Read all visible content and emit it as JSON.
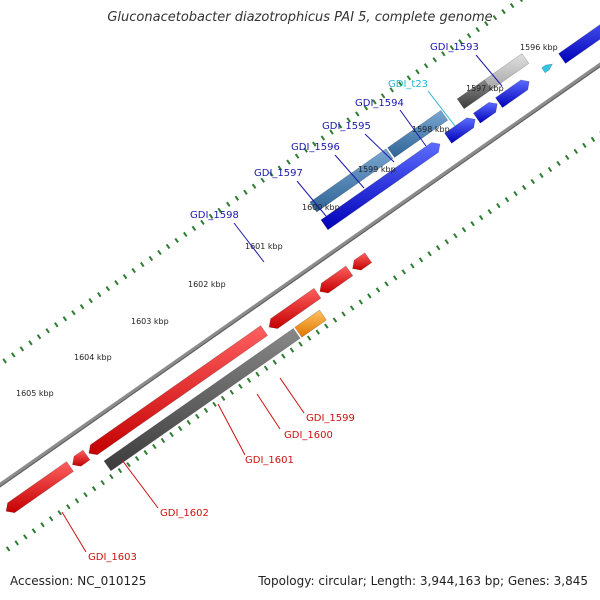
{
  "title": "Gluconacetobacter diazotrophicus PAI 5, complete genome",
  "accession": "Accession: NC_010125",
  "topology": "Topology: circular; Length: 3,944,163 bp; Genes: 3,845",
  "colors": {
    "backbone": "#8c8c8c",
    "tick": "#2e7d32",
    "forward_cds": "#0a14d8",
    "reverse_cds": "#ee0a0a",
    "trna": "#33c4e0",
    "steelblue_feature": "#4a82b4",
    "dark_grey_feature": "#5c5c5c",
    "light_grey_feature": "#c2c2c2",
    "orange_feature": "#ff9a12",
    "forward_label": "#1a1aaa",
    "reverse_label": "#cc1111",
    "trna_label": "#27b4d4"
  },
  "ticks": [
    "1596 kbp",
    "1597 kbp",
    "1598 kbp",
    "1599 kbp",
    "1600 kbp",
    "1601 kbp",
    "1602 kbp",
    "1603 kbp",
    "1604 kbp",
    "1605 kbp"
  ],
  "gene_labels": {
    "forward": [
      "GDI_1593",
      "GDI_1594",
      "GDI_1595",
      "GDI_1596",
      "GDI_1597",
      "GDI_1598"
    ],
    "trna": [
      "GDI_t23"
    ],
    "reverse": [
      "GDI_1599",
      "GDI_1600",
      "GDI_1601",
      "GDI_1602",
      "GDI_1603"
    ]
  }
}
